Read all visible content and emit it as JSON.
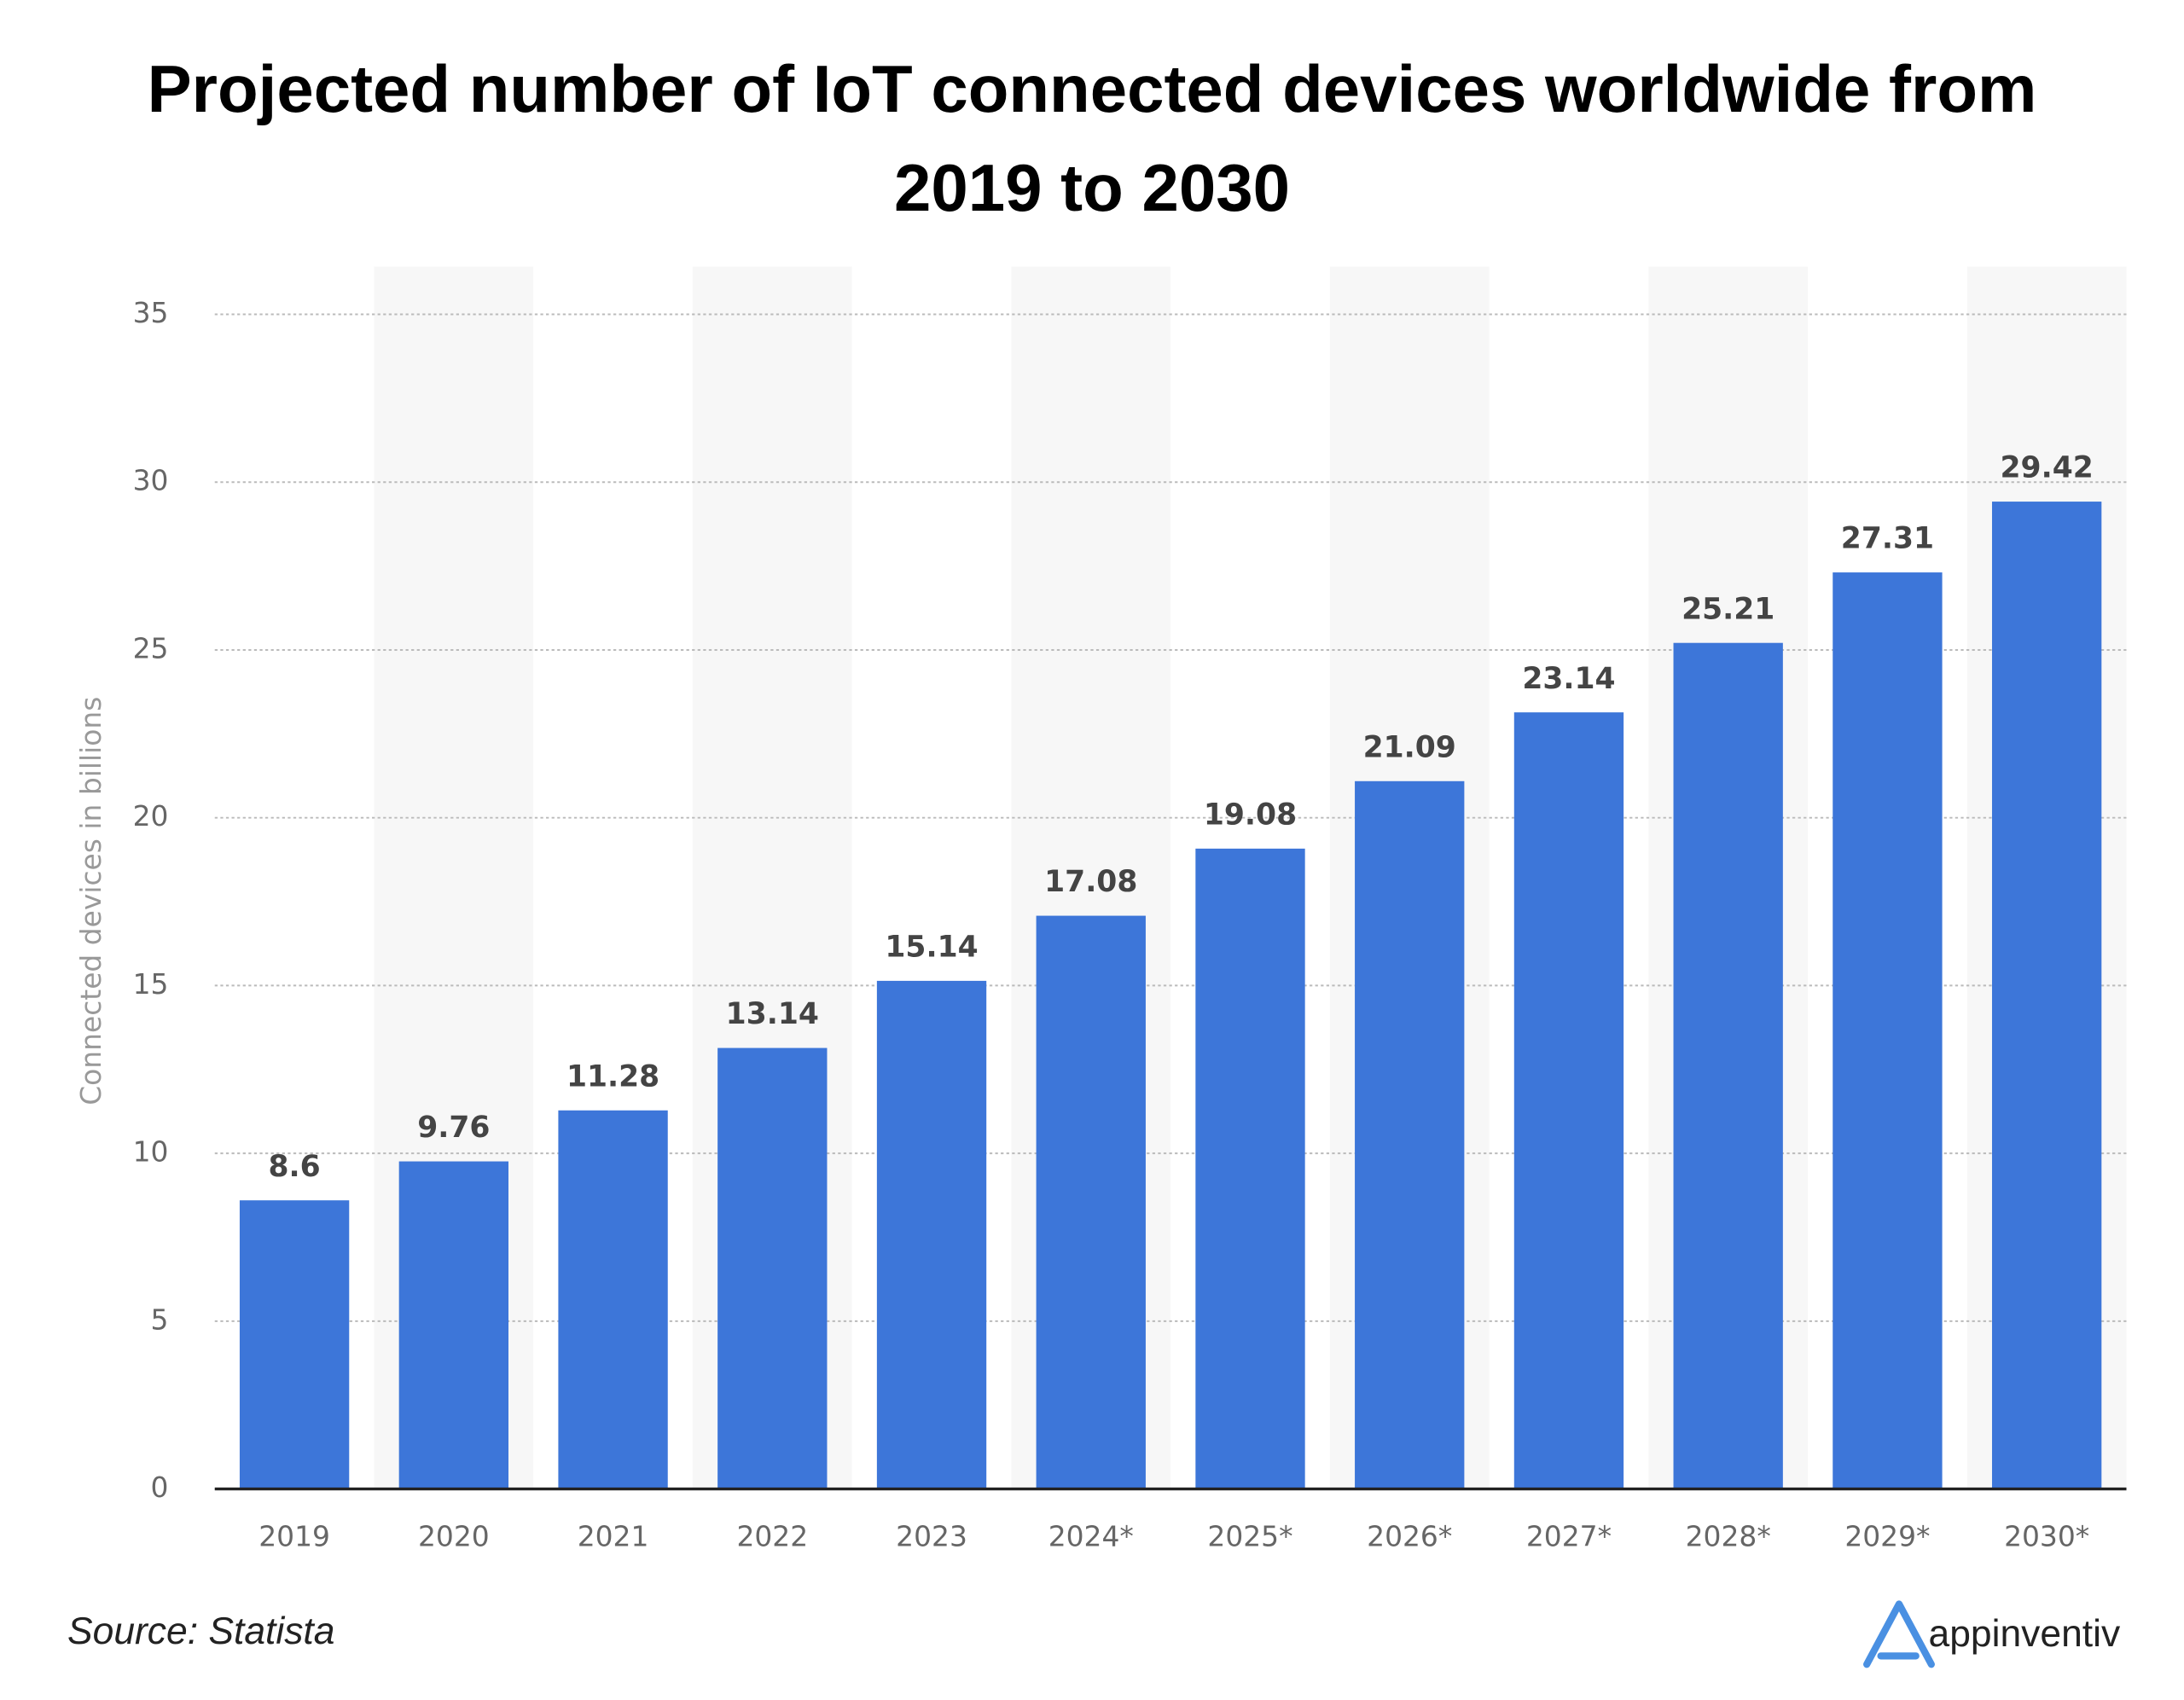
{
  "chart_data": {
    "type": "bar",
    "title": "Projected number of IoT connected devices worldwide from 2019 to 2030",
    "y_label": "Connected devices in billions",
    "categories": [
      "2019",
      "2020",
      "2021",
      "2022",
      "2023",
      "2024*",
      "2025*",
      "2026*",
      "2027*",
      "2028*",
      "2029*",
      "2030*"
    ],
    "values": [
      8.6,
      9.76,
      11.28,
      13.14,
      15.14,
      17.08,
      19.08,
      21.09,
      23.14,
      25.21,
      27.31,
      29.42
    ],
    "color": "#3d76d9",
    "ylim": [
      0,
      35
    ],
    "yticks": [
      0,
      5,
      10,
      15,
      20,
      25,
      30,
      35
    ],
    "grid": true,
    "source": "Source: Statista",
    "brand": "appinventiv"
  }
}
